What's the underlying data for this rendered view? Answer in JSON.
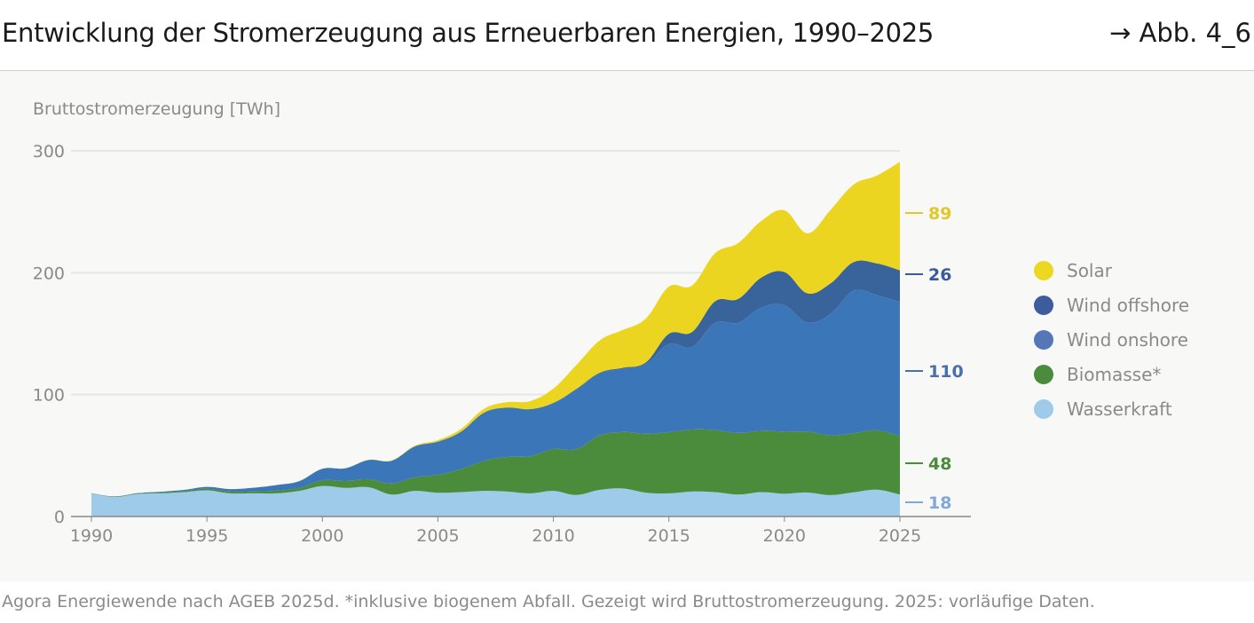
{
  "header": {
    "title": "Entwicklung der Stromerzeugung aus Erneuerbaren Energien, 1990–2025",
    "figure_ref": "→ Abb. 4_6"
  },
  "footer": {
    "source": "Agora Energiewende nach AGEB 2025d. *inklusive biogenem Abfall. Gezeigt wird Bruttostromerzeugung. 2025: vorläufige Daten."
  },
  "chart_data": {
    "type": "area",
    "stacked": true,
    "ylabel": "Bruttostromerzeugung [TWh]",
    "xlim": [
      1990,
      2025
    ],
    "ylim": [
      0,
      300
    ],
    "yticks": [
      0,
      100,
      200,
      300
    ],
    "xticks": [
      1990,
      1995,
      2000,
      2005,
      2010,
      2015,
      2020,
      2025
    ],
    "grid": "horizontal",
    "legend_position": "right",
    "x": [
      1990,
      1991,
      1992,
      1993,
      1994,
      1995,
      1996,
      1997,
      1998,
      1999,
      2000,
      2001,
      2002,
      2003,
      2004,
      2005,
      2006,
      2007,
      2008,
      2009,
      2010,
      2011,
      2012,
      2013,
      2014,
      2015,
      2016,
      2017,
      2018,
      2019,
      2020,
      2021,
      2022,
      2023,
      2024,
      2025
    ],
    "series": [
      {
        "name": "Wasserkraft",
        "color": "#9ecbe9",
        "label_color": "#7fa9dc",
        "end_label": "18",
        "values": [
          19,
          16,
          18.5,
          19,
          20,
          21.5,
          19,
          19,
          19,
          21,
          25,
          23.5,
          24,
          18,
          21,
          19.5,
          20,
          21,
          20.5,
          19,
          21,
          17.7,
          21.8,
          23,
          19.6,
          19,
          20.5,
          20,
          18,
          20,
          18.7,
          19.7,
          17.6,
          19.8,
          22,
          18
        ]
      },
      {
        "name": "Biomasse*",
        "color": "#4b8b3c",
        "label_color": "#4b8b3c",
        "end_label": "48",
        "values": [
          0.2,
          0.3,
          0.4,
          0.7,
          0.9,
          1.3,
          1.5,
          1.6,
          2.2,
          2.5,
          4.7,
          5.6,
          6.6,
          9.1,
          11,
          14.7,
          18.9,
          24.6,
          28.3,
          30.5,
          34.3,
          37.6,
          44.6,
          46.3,
          48.3,
          50.3,
          50.9,
          50.9,
          50.6,
          50.4,
          50.9,
          49.9,
          49,
          48.6,
          48.7,
          48
        ]
      },
      {
        "name": "Wind onshore",
        "color": "#3b77b8",
        "label_color": "#4a6fb0",
        "legend_color": "#5577b8",
        "end_label": "110",
        "values": [
          0,
          0.2,
          0.3,
          0.6,
          0.9,
          1.5,
          2,
          3,
          4.6,
          5.5,
          9.5,
          10.5,
          15.8,
          18.7,
          25.5,
          27.2,
          30.7,
          39.7,
          40.6,
          38.6,
          37.8,
          48.9,
          50.9,
          51.8,
          57,
          72.3,
          67.7,
          88,
          90.5,
          101,
          103.7,
          89.5,
          99.7,
          116.9,
          111,
          110
        ]
      },
      {
        "name": "Wind offshore",
        "color": "#38649b",
        "label_color": "#3a5a9b",
        "legend_color": "#3d5c9e",
        "end_label": "26",
        "values": [
          0,
          0,
          0,
          0,
          0,
          0,
          0,
          0,
          0,
          0,
          0,
          0,
          0,
          0,
          0,
          0,
          0,
          0,
          0,
          0,
          0.2,
          0.6,
          0.7,
          0.9,
          1.5,
          8.3,
          12.3,
          17.7,
          19.5,
          24.7,
          27.3,
          24,
          25,
          23.5,
          26,
          26
        ]
      },
      {
        "name": "Solar",
        "color": "#ecd520",
        "label_color": "#e3c72a",
        "legend_color": "#ecd820",
        "end_label": "89",
        "values": [
          0,
          0,
          0,
          0,
          0,
          0,
          0,
          0,
          0,
          0,
          0.06,
          0.1,
          0.2,
          0.3,
          0.6,
          1.3,
          2.2,
          3.1,
          4.4,
          6.6,
          11.7,
          19.6,
          26.4,
          31,
          36,
          38.7,
          38.1,
          39.4,
          45.8,
          46.4,
          50.6,
          49.3,
          60.3,
          63.6,
          72,
          89
        ]
      }
    ]
  }
}
